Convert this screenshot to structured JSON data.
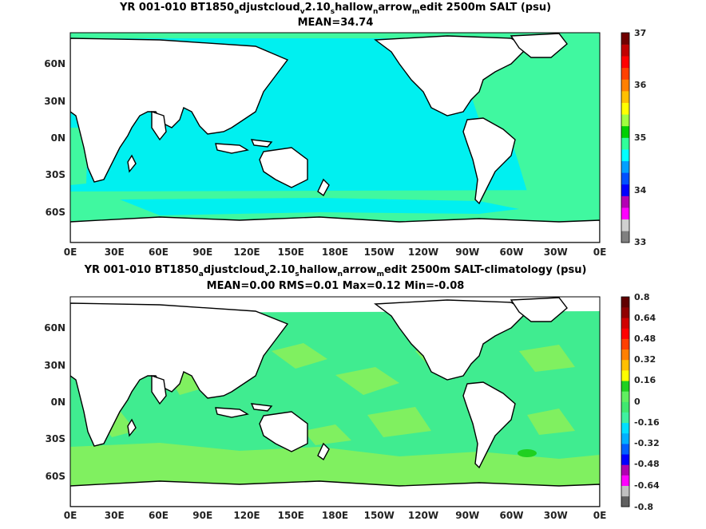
{
  "panels": [
    {
      "title_parts": [
        "YR 001-010 BT1850",
        "a",
        "djustcloud",
        "v",
        "2.10",
        "s",
        "hallow",
        "n",
        "arrow",
        "m",
        "edit 2500m SALT (psu)"
      ],
      "subtitle": "MEAN=34.74",
      "lat_ticks": [
        "60N",
        "30N",
        "0N",
        "30S",
        "60S"
      ],
      "lon_ticks": [
        "0E",
        "30E",
        "60E",
        "90E",
        "120E",
        "150E",
        "180E",
        "150W",
        "120W",
        "90W",
        "60W",
        "30W",
        "0E"
      ],
      "colorbar_ticks": [
        "37",
        "36",
        "35",
        "34",
        "33"
      ],
      "colorbar_colors": [
        "#808080",
        "#d0d0d0",
        "#ff00ff",
        "#b400b4",
        "#0000ff",
        "#0050ff",
        "#00a0ff",
        "#00ffff",
        "#30ff9a",
        "#00d000",
        "#a0ff40",
        "#ffff00",
        "#ffc000",
        "#ff8000",
        "#ff4000",
        "#ff0000",
        "#c00000",
        "#700000"
      ],
      "fill_colors": {
        "ocean": "#00f0f0",
        "atlantic": "#40f8a0",
        "land": "#ffffff",
        "coast": "#000000"
      }
    },
    {
      "title_parts": [
        "YR 001-010 BT1850",
        "a",
        "djustcloud",
        "v",
        "2.10",
        "s",
        "hallow",
        "n",
        "arrow",
        "m",
        "edit 2500m SALT-climatology (psu)"
      ],
      "subtitle": "MEAN=0.00   RMS=0.01   Max=0.12   Min=-0.08",
      "lat_ticks": [
        "60N",
        "30N",
        "0N",
        "30S",
        "60S"
      ],
      "lon_ticks": [
        "0E",
        "30E",
        "60E",
        "90E",
        "120E",
        "150E",
        "180E",
        "150W",
        "120W",
        "90W",
        "60W",
        "30W",
        "0E"
      ],
      "colorbar_ticks": [
        "0.8",
        "0.64",
        "0.48",
        "0.32",
        "0.16",
        "0",
        "-0.16",
        "-0.32",
        "-0.48",
        "-0.64",
        "-0.8"
      ],
      "colorbar_colors": [
        "#606060",
        "#c0c0c0",
        "#ff00ff",
        "#b000b0",
        "#0000ff",
        "#0060ff",
        "#00b0ff",
        "#00e0ff",
        "#40f0a0",
        "#40e870",
        "#60f060",
        "#20d020",
        "#ffff00",
        "#ffc000",
        "#ff8000",
        "#ff4000",
        "#ff0000",
        "#d00000",
        "#900000",
        "#600000"
      ],
      "fill_colors": {
        "ocean": "#40ec90",
        "alt": "#80f060",
        "land": "#ffffff",
        "coast": "#000000"
      }
    }
  ]
}
